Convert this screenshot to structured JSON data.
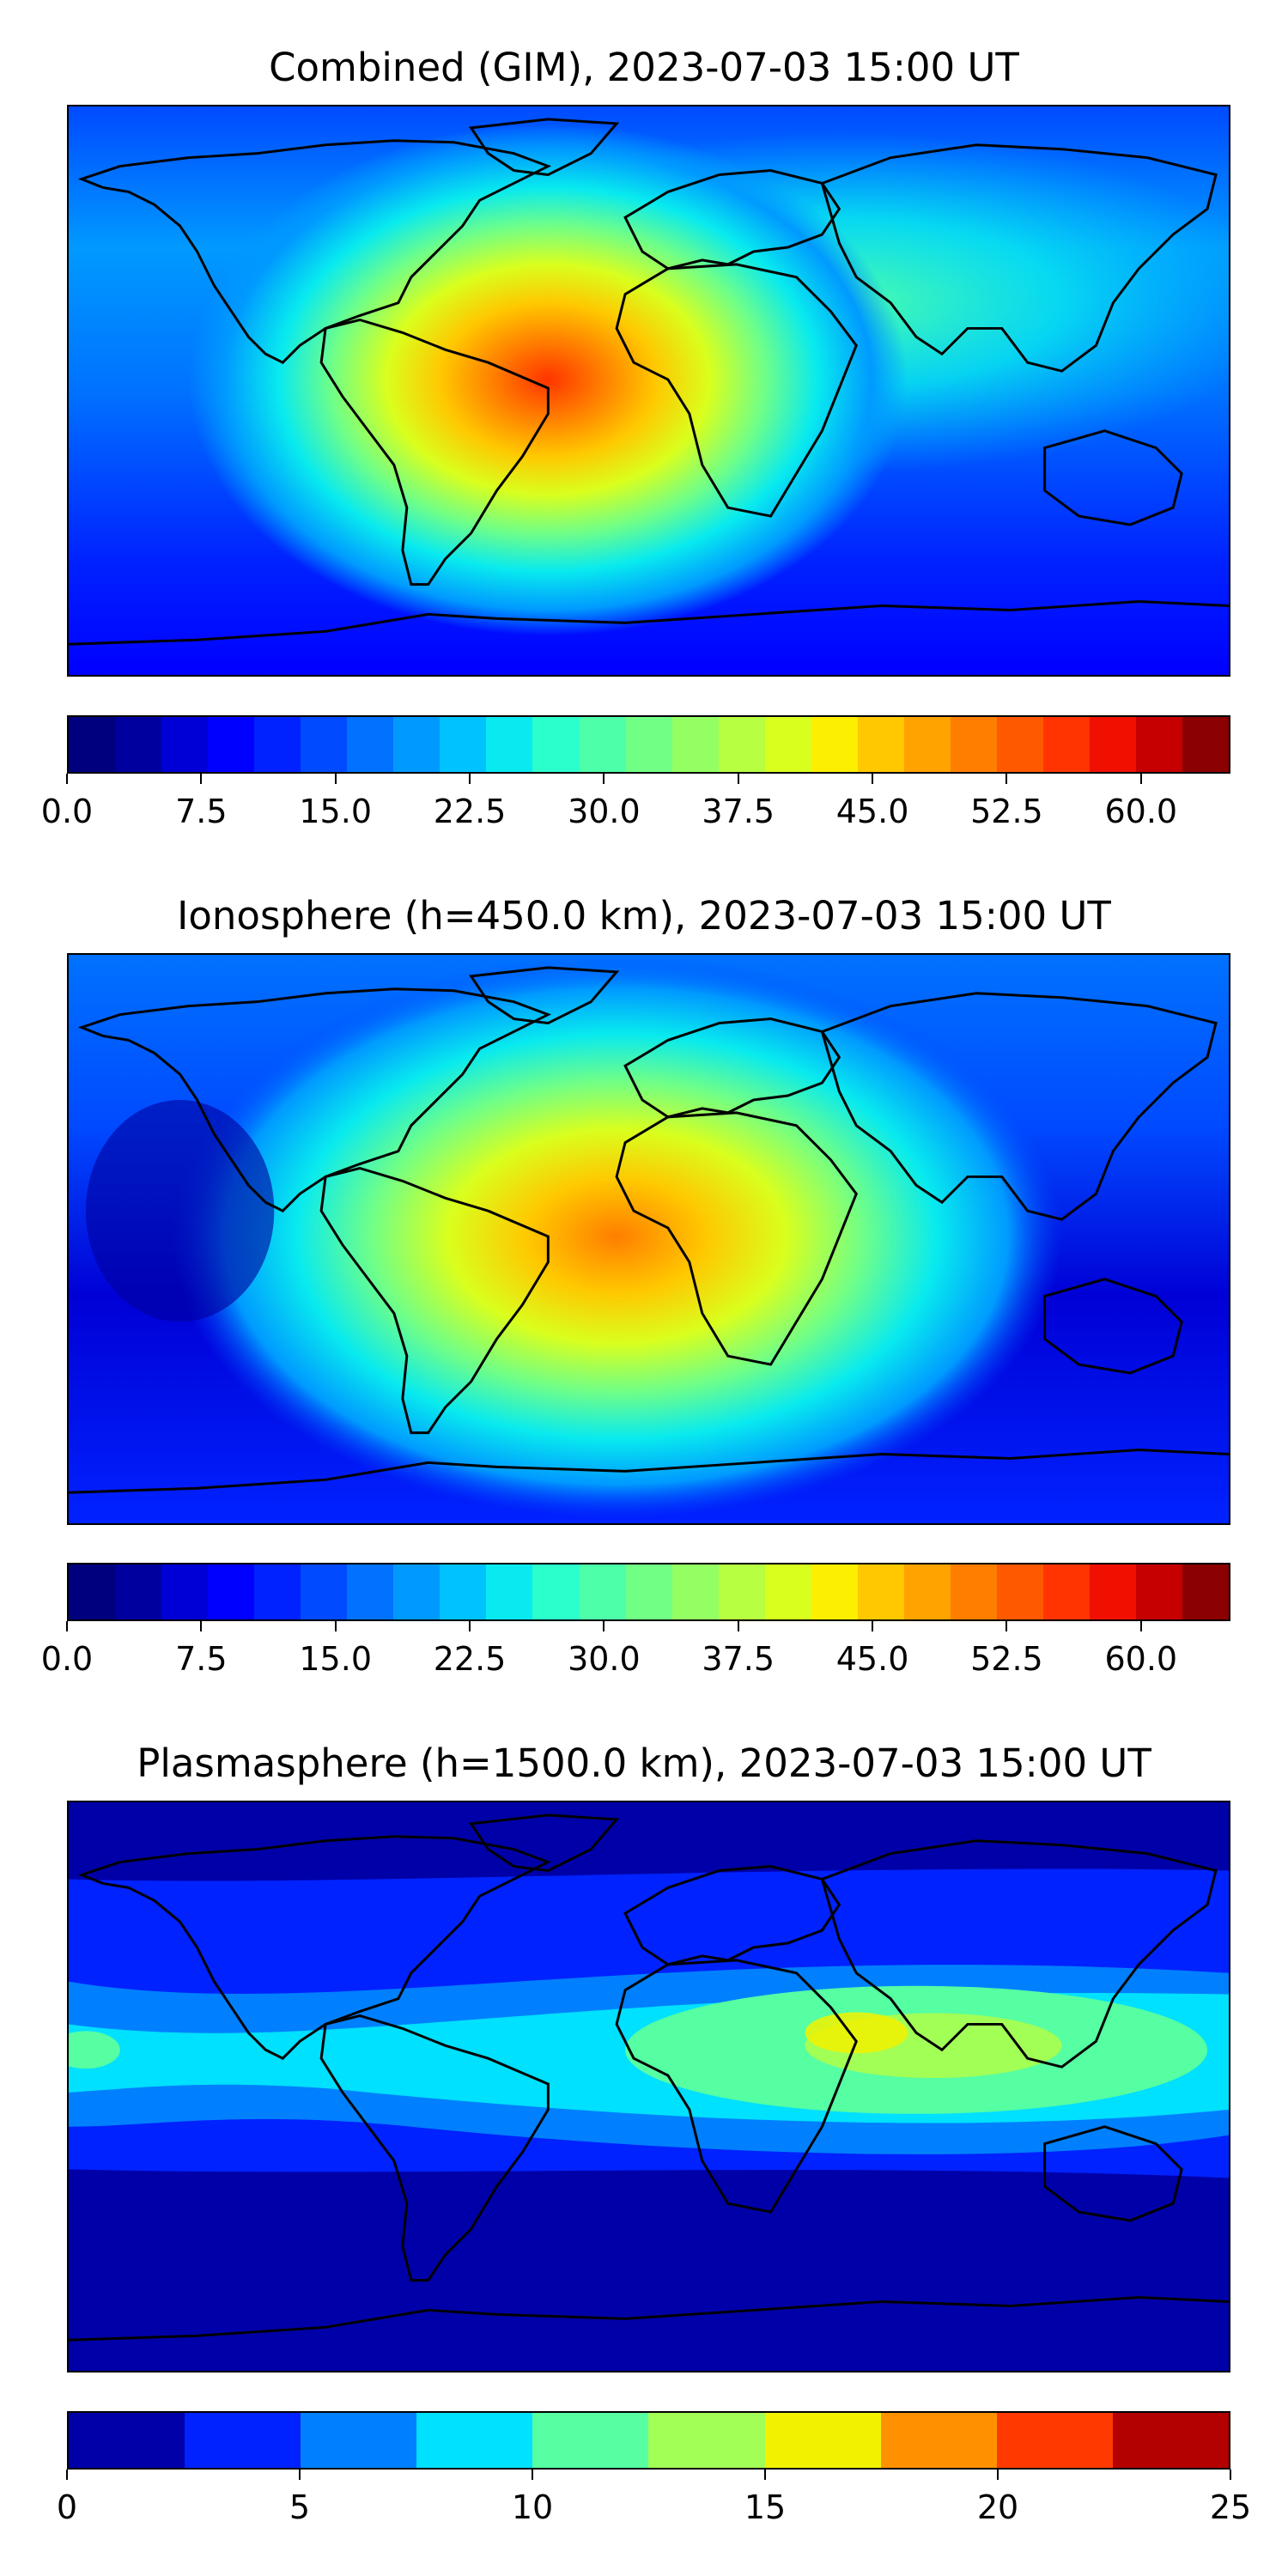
{
  "panels": [
    {
      "title": "Combined (GIM), 2023-07-03 15:00 UT",
      "colorbar": {
        "range": [
          0,
          65
        ],
        "colors": [
          "#00007f",
          "#00009f",
          "#0000d6",
          "#0000ff",
          "#0022ff",
          "#004aff",
          "#0072ff",
          "#009aff",
          "#00c2ff",
          "#08eaef",
          "#2bffcc",
          "#4effa9",
          "#71ff86",
          "#94ff63",
          "#b6ff41",
          "#d9ff1e",
          "#fcef00",
          "#ffc800",
          "#ffa300",
          "#ff7e00",
          "#ff5900",
          "#ff3400",
          "#f10f00",
          "#c60000",
          "#8b0000"
        ],
        "ticks": [
          {
            "value": 0,
            "label": "0.0"
          },
          {
            "value": 7.5,
            "label": "7.5"
          },
          {
            "value": 15,
            "label": "15.0"
          },
          {
            "value": 22.5,
            "label": "22.5"
          },
          {
            "value": 30,
            "label": "30.0"
          },
          {
            "value": 37.5,
            "label": "37.5"
          },
          {
            "value": 45,
            "label": "45.0"
          },
          {
            "value": 52.5,
            "label": "52.5"
          },
          {
            "value": 60,
            "label": "60.0"
          }
        ]
      }
    },
    {
      "title": "Ionosphere  (h=450.0 km), 2023-07-03 15:00 UT",
      "colorbar": {
        "range": [
          0,
          65
        ],
        "colors": [
          "#00007f",
          "#00009f",
          "#0000d6",
          "#0000ff",
          "#0022ff",
          "#004aff",
          "#0072ff",
          "#009aff",
          "#00c2ff",
          "#08eaef",
          "#2bffcc",
          "#4effa9",
          "#71ff86",
          "#94ff63",
          "#b6ff41",
          "#d9ff1e",
          "#fcef00",
          "#ffc800",
          "#ffa300",
          "#ff7e00",
          "#ff5900",
          "#ff3400",
          "#f10f00",
          "#c60000",
          "#8b0000"
        ],
        "ticks": [
          {
            "value": 0,
            "label": "0.0"
          },
          {
            "value": 7.5,
            "label": "7.5"
          },
          {
            "value": 15,
            "label": "15.0"
          },
          {
            "value": 22.5,
            "label": "22.5"
          },
          {
            "value": 30,
            "label": "30.0"
          },
          {
            "value": 37.5,
            "label": "37.5"
          },
          {
            "value": 45,
            "label": "45.0"
          },
          {
            "value": 52.5,
            "label": "52.5"
          },
          {
            "value": 60,
            "label": "60.0"
          }
        ]
      }
    },
    {
      "title": "Plasmasphere (h=1500.0 km), 2023-07-03 15:00 UT",
      "colorbar": {
        "range": [
          0,
          25
        ],
        "colors": [
          "#0000a8",
          "#0022ff",
          "#0080ff",
          "#00e0ff",
          "#55ffa2",
          "#a2ff55",
          "#f2f200",
          "#ff9100",
          "#ff3a00",
          "#b30000"
        ],
        "ticks": [
          {
            "value": 0,
            "label": "0"
          },
          {
            "value": 5,
            "label": "5"
          },
          {
            "value": 10,
            "label": "10"
          },
          {
            "value": 15,
            "label": "15"
          },
          {
            "value": 20,
            "label": "20"
          },
          {
            "value": 25,
            "label": "25"
          }
        ]
      }
    }
  ],
  "chart_data": [
    {
      "type": "heatmap",
      "title": "Combined (GIM), 2023-07-03 15:00 UT",
      "colorbar_range": [
        0,
        65
      ],
      "colorbar_levels": 26,
      "peak": {
        "value": 62,
        "lon": -30,
        "lat": -5,
        "region": "tropical Atlantic between South America and Africa"
      },
      "background_value": 5
    },
    {
      "type": "heatmap",
      "title": "Ionosphere  (h=450.0 km), 2023-07-03 15:00 UT",
      "colorbar_range": [
        0,
        65
      ],
      "colorbar_levels": 26,
      "peak": {
        "value": 48,
        "lon": -30,
        "lat": -5,
        "region": "tropical Atlantic between South America and Africa"
      },
      "background_value": 3
    },
    {
      "type": "heatmap",
      "title": "Plasmasphere (h=1500.0 km), 2023-07-03 15:00 UT",
      "colorbar_range": [
        0,
        25
      ],
      "colorbar_levels": 10,
      "peak": {
        "value": 16,
        "lon": 75,
        "lat": 20,
        "region": "Arabian Sea / South Asia"
      },
      "background_value": 2
    }
  ]
}
